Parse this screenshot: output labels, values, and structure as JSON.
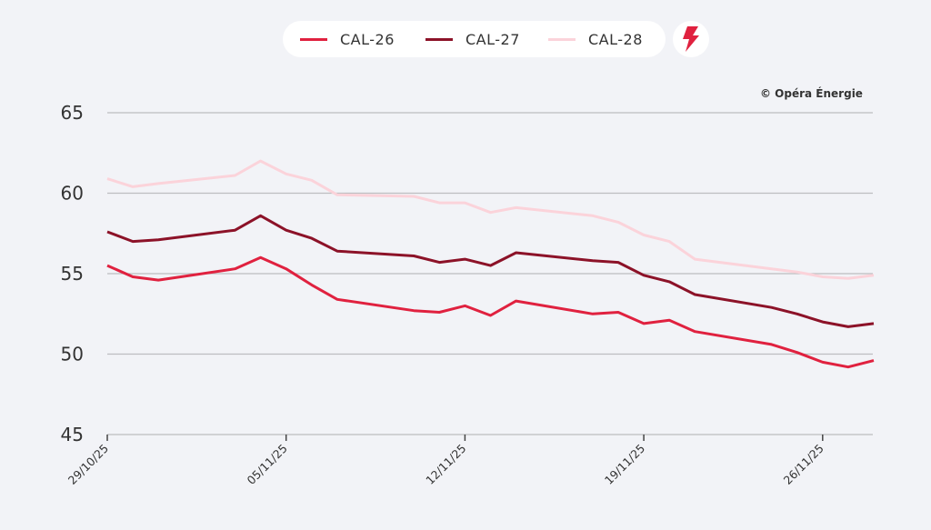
{
  "legend": {
    "items": [
      {
        "label": "CAL-26",
        "color": "#e0213f"
      },
      {
        "label": "CAL-27",
        "color": "#8c1228"
      },
      {
        "label": "CAL-28",
        "color": "#fbd3da"
      }
    ],
    "action_icon": "lightning-bolt-icon",
    "action_icon_color": "#e0213f"
  },
  "copyright": "© Opéra Énergie",
  "chart_data": {
    "type": "line",
    "title": "",
    "xlabel": "",
    "ylabel": "",
    "ylim": [
      45,
      65
    ],
    "yticks": [
      "45",
      "50",
      "55",
      "60",
      "65"
    ],
    "xlim": [
      "2025-10-29",
      "2025-11-28"
    ],
    "xticks": [
      {
        "date": "2025-10-29",
        "label": "29/10/25"
      },
      {
        "date": "2025-11-05",
        "label": "05/11/25"
      },
      {
        "date": "2025-11-12",
        "label": "12/11/25"
      },
      {
        "date": "2025-11-19",
        "label": "19/11/25"
      },
      {
        "date": "2025-11-26",
        "label": "26/11/25"
      }
    ],
    "grid": "horizontal",
    "legend_position": "top-center",
    "x": [
      "2025-10-29",
      "2025-10-30",
      "2025-10-31",
      "2025-11-03",
      "2025-11-04",
      "2025-11-05",
      "2025-11-06",
      "2025-11-07",
      "2025-11-10",
      "2025-11-11",
      "2025-11-12",
      "2025-11-13",
      "2025-11-14",
      "2025-11-17",
      "2025-11-18",
      "2025-11-19",
      "2025-11-20",
      "2025-11-21",
      "2025-11-24",
      "2025-11-25",
      "2025-11-26",
      "2025-11-27",
      "2025-11-28"
    ],
    "series": [
      {
        "name": "CAL-26",
        "color": "#e0213f",
        "values": [
          55.5,
          54.8,
          54.6,
          55.3,
          56.0,
          55.3,
          54.3,
          53.4,
          52.7,
          52.6,
          53.0,
          52.4,
          53.3,
          52.5,
          52.6,
          51.9,
          52.1,
          51.4,
          50.6,
          50.1,
          49.5,
          49.2,
          49.6
        ]
      },
      {
        "name": "CAL-27",
        "color": "#8c1228",
        "values": [
          57.6,
          57.0,
          57.1,
          57.7,
          58.6,
          57.7,
          57.2,
          56.4,
          56.1,
          55.7,
          55.9,
          55.5,
          56.3,
          55.8,
          55.7,
          54.9,
          54.5,
          53.7,
          52.9,
          52.5,
          52.0,
          51.7,
          51.9
        ]
      },
      {
        "name": "CAL-28",
        "color": "#fbd3da",
        "values": [
          60.9,
          60.4,
          60.6,
          61.1,
          62.0,
          61.2,
          60.8,
          59.9,
          59.8,
          59.4,
          59.4,
          58.8,
          59.1,
          58.6,
          58.2,
          57.4,
          57.0,
          55.9,
          55.3,
          55.1,
          54.8,
          54.7,
          54.9
        ]
      }
    ]
  }
}
